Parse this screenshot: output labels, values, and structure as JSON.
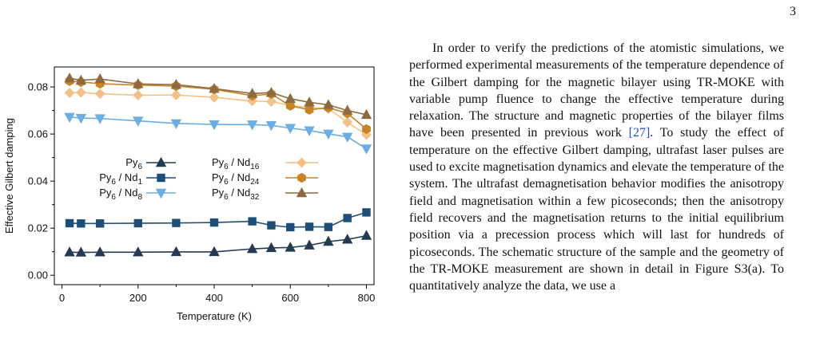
{
  "page": {
    "number": "3"
  },
  "body": {
    "paragraph_start": "In order to verify the predictions of the atomistic simulations, we performed experimental measurements of the temperature dependence of the Gilbert damping for the magnetic bilayer using TR-MOKE with variable pump fluence to change the effective temperature during relaxation. The structure and magnetic properties of the bilayer films have been presented in previous work ",
    "citation": "[27]",
    "paragraph_end": ". To study the effect of temperature on the effective Gilbert damping, ultrafast laser pulses are used to excite magnetisation dynamics and elevate the temperature of the system. The ultrafast demagnetisation behavior modifies the anisotropy field and magnetisation within a few picoseconds; then the anisotropy field recovers and the magnetisation returns to the initial equilibrium position via a precession process which will last for hundreds of picoseconds. The schematic structure of the sample and the geometry of the TR-MOKE measurement are shown in detail in Figure S3(a). To quantitatively analyze the data, we use a"
  },
  "chart_data": {
    "type": "line",
    "xlabel": "Temperature (K)",
    "ylabel": "Effective Gilbert damping",
    "xlim": [
      -20,
      820
    ],
    "ylim": [
      -0.004,
      0.0885
    ],
    "xticks": [
      0,
      200,
      400,
      600,
      800
    ],
    "yticks": [
      0.0,
      0.02,
      0.04,
      0.06,
      0.08
    ],
    "xtick_labels": [
      "0",
      "200",
      "400",
      "600",
      "800"
    ],
    "ytick_labels": [
      "0.00",
      "0.02",
      "0.04",
      "0.06",
      "0.08"
    ],
    "grid": false,
    "legend_position": "center",
    "x": [
      20,
      50,
      100,
      200,
      300,
      400,
      500,
      550,
      600,
      650,
      700,
      750,
      800
    ],
    "series": [
      {
        "name": "Py",
        "sub": "6",
        "suffix": "",
        "suffix_sub": "",
        "color": "#243a52",
        "marker": "triangle-up",
        "values": [
          0.0098,
          0.0097,
          0.0098,
          0.0098,
          0.0099,
          0.0099,
          0.0112,
          0.0116,
          0.0118,
          0.0127,
          0.0143,
          0.0152,
          0.0168
        ]
      },
      {
        "name": "Py",
        "sub": "6",
        "suffix": " / Nd",
        "suffix_sub": "1",
        "color": "#1d4e78",
        "marker": "square",
        "values": [
          0.0221,
          0.022,
          0.022,
          0.0221,
          0.0222,
          0.0224,
          0.0229,
          0.0212,
          0.0204,
          0.0206,
          0.0205,
          0.0243,
          0.0267
        ]
      },
      {
        "name": "Py",
        "sub": "6",
        "suffix": " / Nd",
        "suffix_sub": "8",
        "color": "#6aaee3",
        "marker": "triangle-down",
        "values": [
          0.0672,
          0.0668,
          0.0666,
          0.0656,
          0.0645,
          0.0641,
          0.064,
          0.0637,
          0.0625,
          0.0615,
          0.0601,
          0.0588,
          0.0538
        ]
      },
      {
        "name": "Py",
        "sub": "6",
        "suffix": " / Nd",
        "suffix_sub": "16",
        "color": "#f3c186",
        "marker": "diamond",
        "values": [
          0.0775,
          0.0777,
          0.0771,
          0.0765,
          0.0766,
          0.0756,
          0.074,
          0.0738,
          0.0722,
          0.0712,
          0.0708,
          0.065,
          0.0597
        ]
      },
      {
        "name": "Py",
        "sub": "6",
        "suffix": " / Nd",
        "suffix_sub": "24",
        "color": "#c78324",
        "marker": "hexagon",
        "values": [
          0.0825,
          0.0821,
          0.0814,
          0.0808,
          0.0804,
          0.079,
          0.0763,
          0.077,
          0.072,
          0.0703,
          0.0712,
          0.0688,
          0.0621
        ]
      },
      {
        "name": "Py",
        "sub": "6",
        "suffix": " / Nd",
        "suffix_sub": "32",
        "color": "#8e6a3e",
        "marker": "triangle-up",
        "values": [
          0.0837,
          0.0828,
          0.0834,
          0.0813,
          0.081,
          0.0793,
          0.0772,
          0.0776,
          0.075,
          0.0735,
          0.0724,
          0.07,
          0.0682
        ]
      }
    ]
  }
}
